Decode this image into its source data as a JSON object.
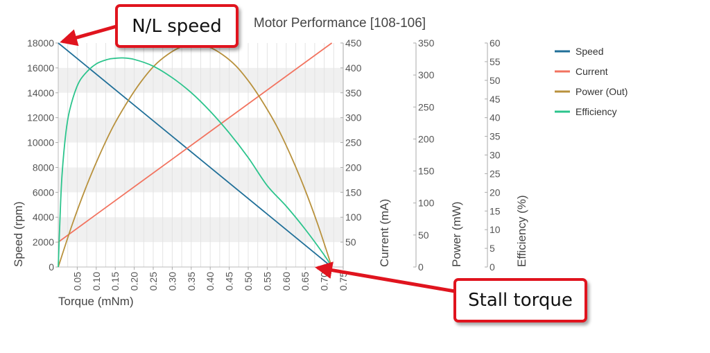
{
  "chart_data": {
    "type": "line",
    "title": "Motor Performance [108-106]",
    "xlabel": "Torque (mNm)",
    "xlim": [
      0,
      0.75
    ],
    "x_ticks": [
      "0.05",
      "0.10",
      "0.15",
      "0.20",
      "0.25",
      "0.30",
      "0.35",
      "0.40",
      "0.45",
      "0.50",
      "0.55",
      "0.60",
      "0.65",
      "0.70",
      "0.75"
    ],
    "legend_position": "top-right",
    "grid": "vertical lines every 0.025, horizontal bands every 2000 rpm",
    "axes": [
      {
        "id": "speed",
        "label": "Speed (rpm)",
        "ylim": [
          0,
          18000
        ],
        "ticks": [
          "0",
          "2000",
          "4000",
          "6000",
          "8000",
          "10000",
          "12000",
          "14000",
          "16000",
          "18000"
        ]
      },
      {
        "id": "current",
        "label": "Current (mA)",
        "ylim": [
          0,
          450
        ],
        "ticks": [
          "50",
          "100",
          "150",
          "200",
          "250",
          "300",
          "350",
          "400",
          "450"
        ]
      },
      {
        "id": "power",
        "label": "Power (mW)",
        "ylim": [
          0,
          350
        ],
        "ticks": [
          "0",
          "50",
          "100",
          "150",
          "200",
          "250",
          "300",
          "350"
        ]
      },
      {
        "id": "efficiency",
        "label": "Efficiency (%)",
        "ylim": [
          0,
          60
        ],
        "ticks": [
          "0",
          "5",
          "10",
          "15",
          "20",
          "25",
          "30",
          "35",
          "40",
          "45",
          "50",
          "55",
          "60"
        ]
      }
    ],
    "series": [
      {
        "name": "Speed",
        "axis": "speed",
        "color": "#1f6f98",
        "x": [
          0,
          0.72
        ],
        "y": [
          18000,
          0
        ]
      },
      {
        "name": "Current",
        "axis": "current",
        "color": "#f2735f",
        "x": [
          0,
          0.72
        ],
        "y": [
          50,
          450
        ]
      },
      {
        "name": "Power (Out)",
        "axis": "power",
        "color": "#b8913c",
        "x": [
          0,
          0.036,
          0.072,
          0.108,
          0.144,
          0.18,
          0.216,
          0.252,
          0.288,
          0.324,
          0.36,
          0.396,
          0.432,
          0.468,
          0.504,
          0.54,
          0.576,
          0.612,
          0.648,
          0.684,
          0.72
        ],
        "y": [
          0,
          65,
          123,
          174,
          219,
          256,
          288,
          314,
          332,
          344,
          348,
          344,
          332,
          314,
          288,
          256,
          219,
          174,
          123,
          65,
          0
        ]
      },
      {
        "name": "Efficiency",
        "axis": "efficiency",
        "color": "#2bc48c",
        "x": [
          0,
          0.005,
          0.01,
          0.02,
          0.03,
          0.05,
          0.07,
          0.1,
          0.13,
          0.15,
          0.17,
          0.2,
          0.25,
          0.3,
          0.35,
          0.4,
          0.45,
          0.5,
          0.55,
          0.6,
          0.65,
          0.7,
          0.72
        ],
        "y": [
          0,
          14,
          24.7,
          35.9,
          42,
          48.5,
          51.7,
          54.4,
          55.6,
          55.9,
          56,
          55.6,
          53.8,
          50.7,
          46.7,
          41.7,
          35.9,
          29.3,
          21.8,
          16.3,
          10.1,
          3.2,
          0
        ]
      }
    ]
  },
  "annotations": {
    "nl_speed": "N/L speed",
    "stall_torque": "Stall torque",
    "arrow_color": "#e0141e"
  }
}
